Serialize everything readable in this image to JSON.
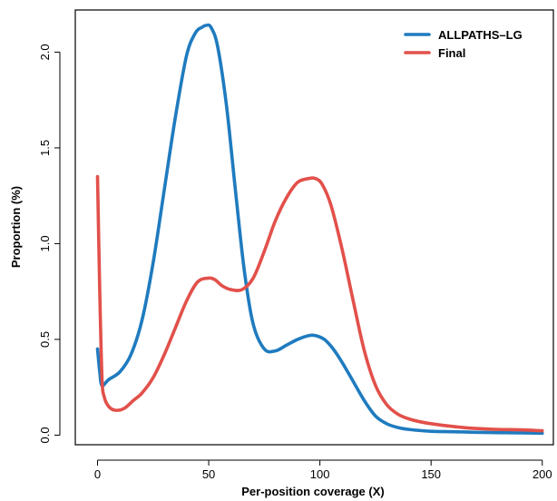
{
  "chart_data": {
    "type": "line",
    "xlabel": "Per-position coverage (X)",
    "ylabel": "Proportion (%)",
    "xlim": [
      -10,
      205
    ],
    "ylim": [
      -0.05,
      2.22
    ],
    "xticks": [
      0,
      50,
      100,
      150,
      200
    ],
    "yticks": [
      0.0,
      0.5,
      1.0,
      1.5,
      2.0
    ],
    "xtick_labels": [
      "0",
      "50",
      "100",
      "150",
      "200"
    ],
    "ytick_labels": [
      "0.0",
      "0.5",
      "1.0",
      "1.5",
      "2.0"
    ],
    "legend_position": "top-right",
    "grid": false,
    "series": [
      {
        "name": "ALLPATHS–LG",
        "color": "#1f7bbf",
        "x": [
          0,
          1,
          2,
          5,
          10,
          15,
          20,
          25,
          30,
          35,
          40,
          44,
          47,
          49,
          51,
          54,
          58,
          62,
          66,
          70,
          75,
          80,
          85,
          90,
          95,
          98,
          102,
          106,
          110,
          115,
          120,
          125,
          130,
          135,
          140,
          150,
          160,
          170,
          180,
          190,
          200
        ],
        "y": [
          0.45,
          0.33,
          0.26,
          0.29,
          0.33,
          0.42,
          0.6,
          0.9,
          1.28,
          1.66,
          1.98,
          2.1,
          2.13,
          2.14,
          2.13,
          2.03,
          1.72,
          1.28,
          0.86,
          0.58,
          0.45,
          0.44,
          0.47,
          0.5,
          0.52,
          0.52,
          0.5,
          0.45,
          0.38,
          0.28,
          0.18,
          0.1,
          0.06,
          0.04,
          0.03,
          0.02,
          0.018,
          0.015,
          0.013,
          0.012,
          0.01
        ]
      },
      {
        "name": "Final",
        "color": "#e2504a",
        "x": [
          0,
          1,
          2,
          3,
          5,
          8,
          12,
          16,
          20,
          25,
          30,
          35,
          40,
          45,
          50,
          53,
          56,
          60,
          65,
          70,
          75,
          80,
          85,
          90,
          95,
          98,
          101,
          105,
          110,
          115,
          120,
          125,
          130,
          135,
          140,
          145,
          150,
          160,
          170,
          180,
          190,
          200
        ],
        "y": [
          1.35,
          0.75,
          0.3,
          0.2,
          0.15,
          0.13,
          0.14,
          0.18,
          0.22,
          0.3,
          0.42,
          0.56,
          0.7,
          0.8,
          0.82,
          0.81,
          0.78,
          0.76,
          0.76,
          0.82,
          0.96,
          1.12,
          1.24,
          1.32,
          1.34,
          1.34,
          1.31,
          1.2,
          0.97,
          0.7,
          0.44,
          0.26,
          0.16,
          0.11,
          0.085,
          0.07,
          0.06,
          0.045,
          0.035,
          0.03,
          0.028,
          0.023
        ]
      }
    ]
  }
}
